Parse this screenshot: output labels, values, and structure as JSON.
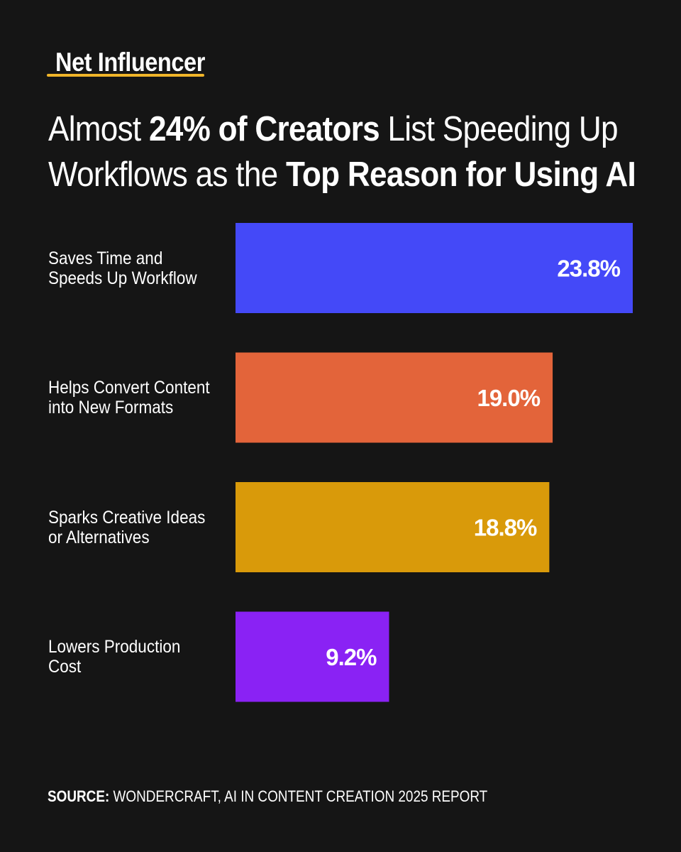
{
  "brand": "Net Influencer",
  "title": {
    "line1": {
      "pre": "Almost ",
      "bold": "24% of Creators",
      "post": " List Speeding Up"
    },
    "line2": {
      "pre": "Workflows as the ",
      "bold": "Top Reason for Using AI"
    }
  },
  "chart_data": {
    "type": "bar",
    "orientation": "horizontal",
    "categories": [
      [
        "Saves Time and",
        "Speeds Up Workflow"
      ],
      [
        "Helps Convert Content",
        "into New Formats"
      ],
      [
        "Sparks Creative Ideas",
        "or Alternatives"
      ],
      [
        "Lowers Production",
        "Cost"
      ]
    ],
    "values": [
      23.8,
      19.0,
      18.8,
      9.2
    ],
    "value_labels": [
      "23.8%",
      "19.0%",
      "18.8%",
      "9.2%"
    ],
    "colors": [
      "#4449f8",
      "#e3643a",
      "#d99a0a",
      "#8a22f4"
    ],
    "title": "Almost 24% of Creators List Speeding Up Workflows as the Top Reason for Using AI",
    "xlabel": "",
    "ylabel": "",
    "grid": false
  },
  "source": {
    "label": "SOURCE:",
    "text": " WONDERCRAFT, AI IN CONTENT CREATION 2025 REPORT"
  },
  "colors": {
    "background": "#151515",
    "accent_underline": "#f0b429",
    "text": "#ffffff"
  }
}
